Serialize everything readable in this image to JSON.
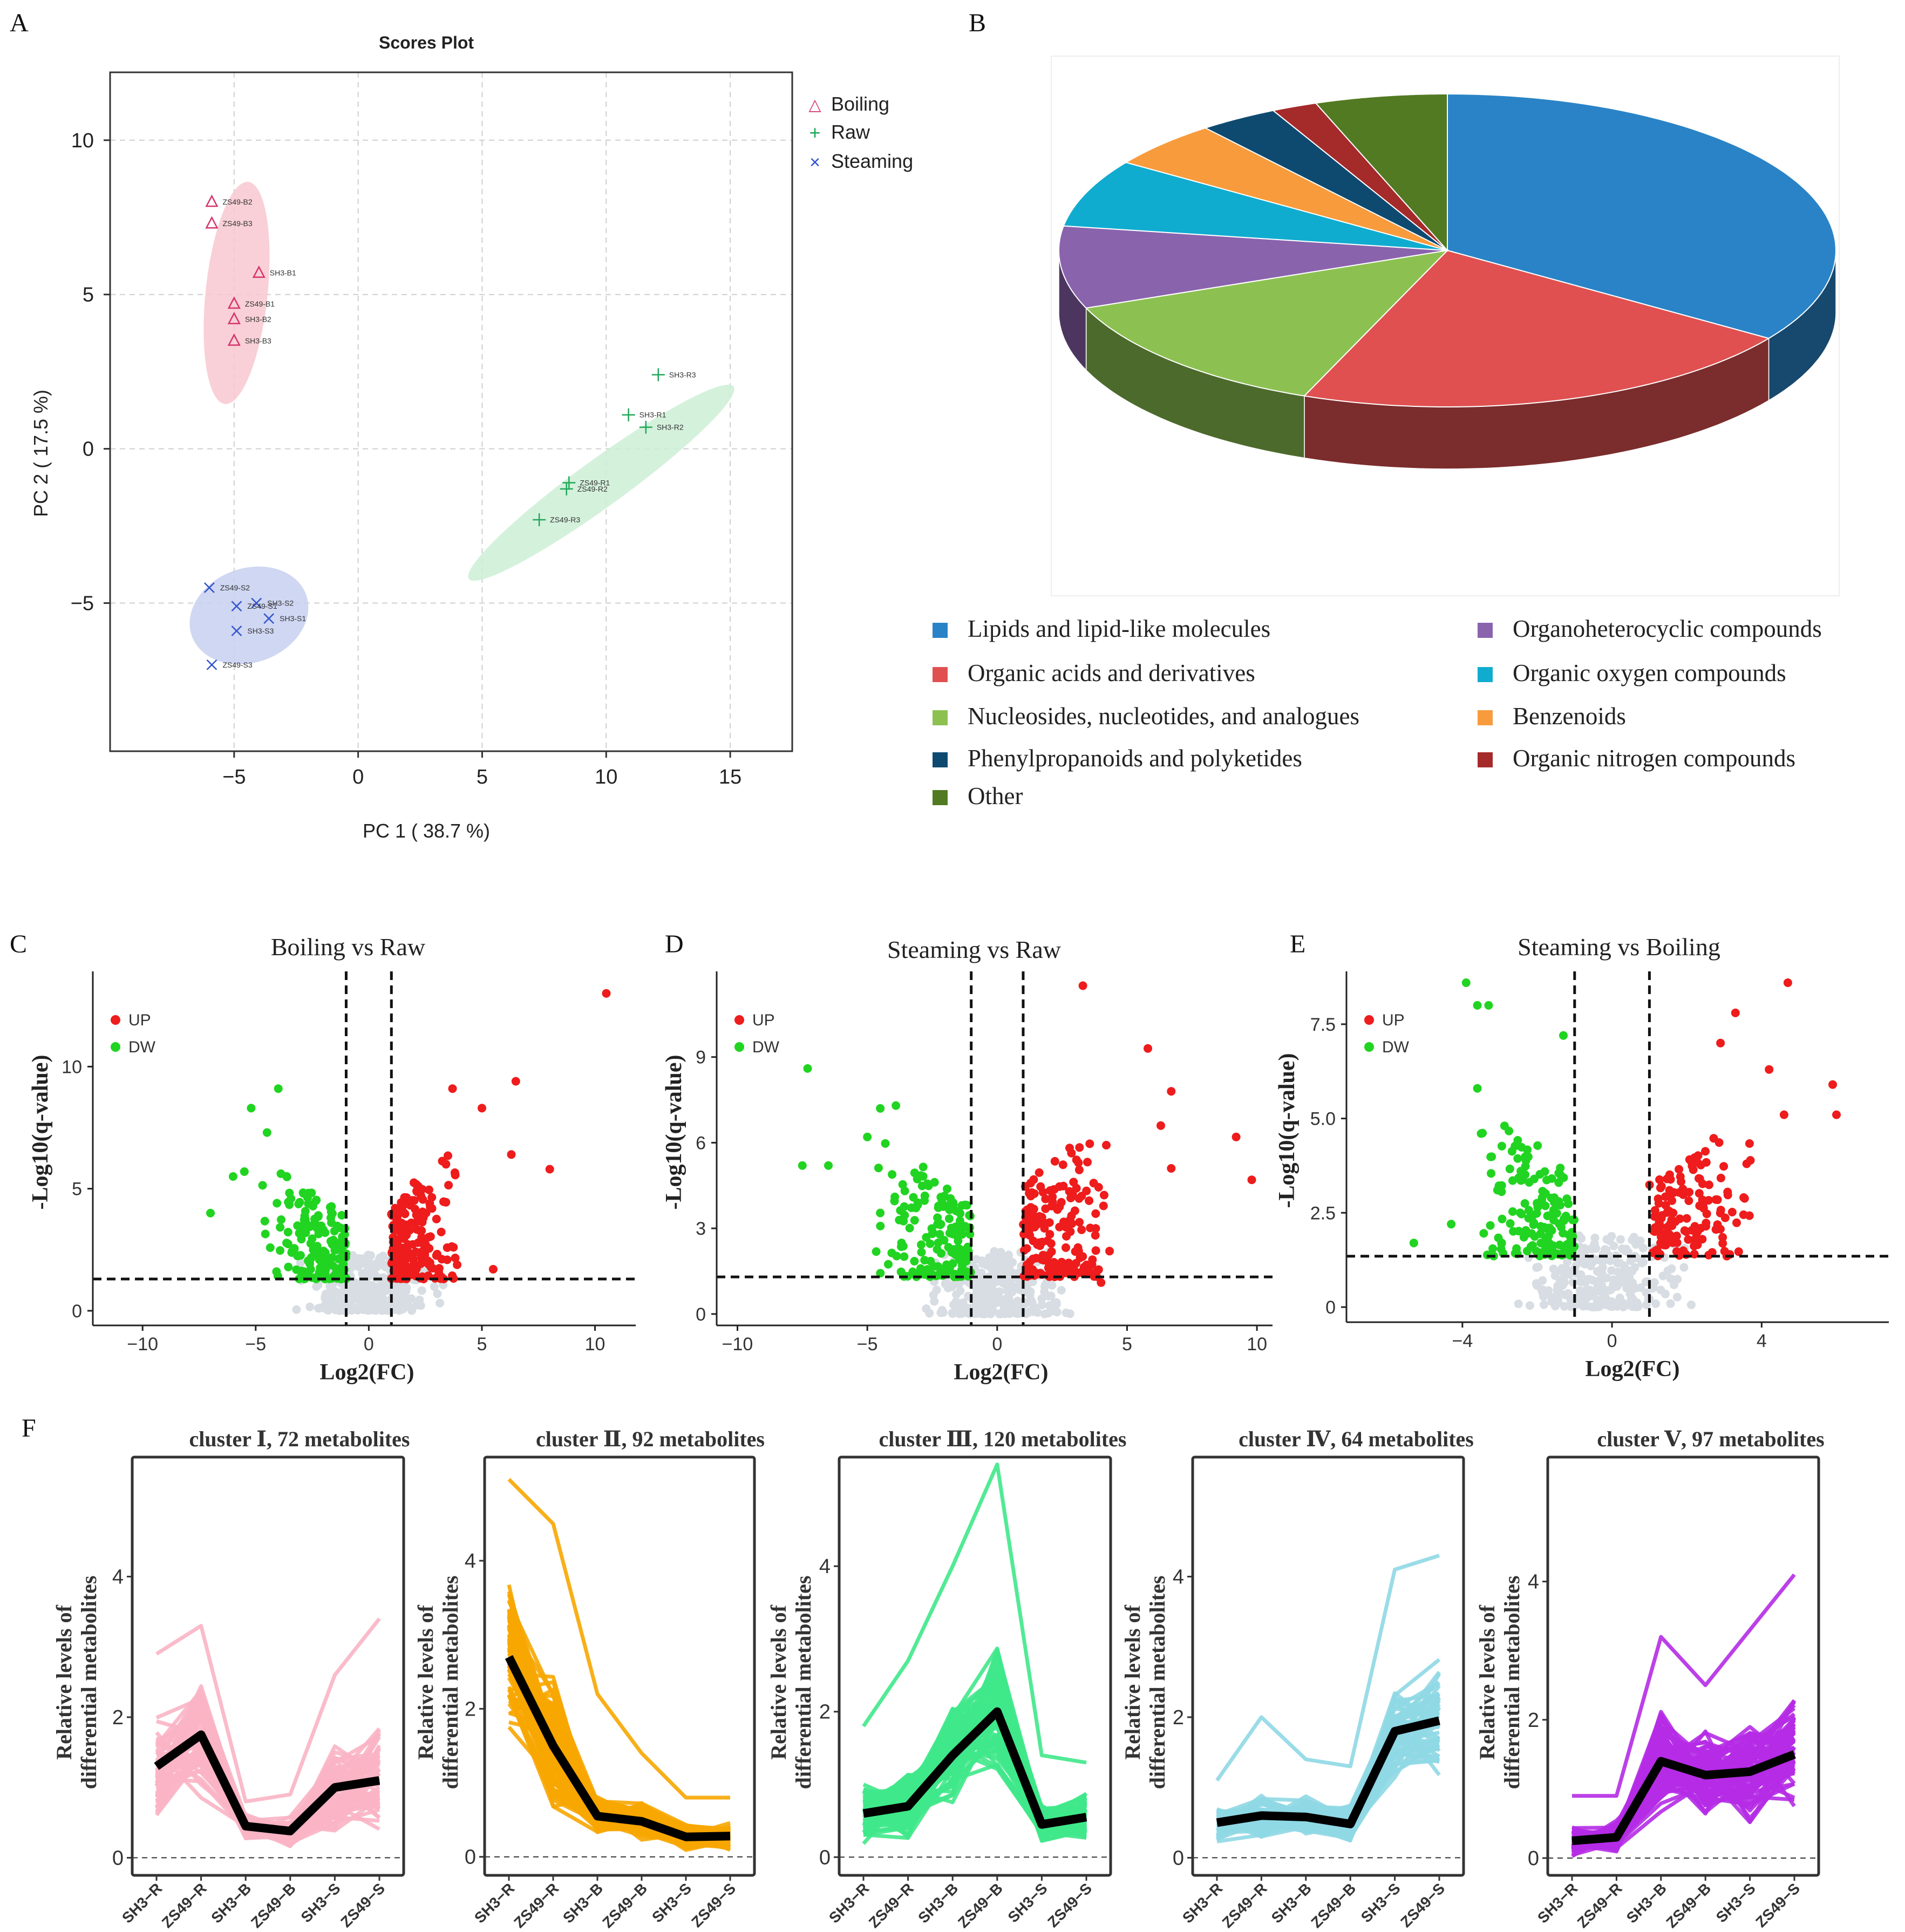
{
  "panel_labels": {
    "a": "A",
    "b": "B",
    "c": "C",
    "d": "D",
    "e": "E",
    "f": "F"
  },
  "chart_data": [
    {
      "id": "pca",
      "type": "scatter",
      "title": "Scores Plot",
      "xlabel": "PC 1 ( 38.7 %)",
      "ylabel": "PC 2 ( 17.5 %)",
      "xlim": [
        -10,
        17.5
      ],
      "ylim": [
        -9.8,
        12.2
      ],
      "xticks": [
        -5,
        0,
        5,
        10,
        15
      ],
      "yticks": [
        -5,
        0,
        5,
        10
      ],
      "xtick_labels": [
        "−5",
        "0",
        "5",
        "10",
        "15"
      ],
      "ytick_labels": [
        "−5",
        "0",
        "5",
        "10"
      ],
      "legend": [
        "Boiling",
        "Raw",
        "Steaming"
      ],
      "series": [
        {
          "name": "Boiling",
          "marker": "triangle",
          "color": "#d6336c",
          "fill": "#f8c8d0",
          "ellipse": {
            "cx": -4.9,
            "cy": 5.05,
            "rx": 4.5,
            "ry": 1.25,
            "angle": -84
          },
          "points": [
            {
              "label": "ZS49-B2",
              "x": -5.9,
              "y": 8.0
            },
            {
              "label": "ZS49-B3",
              "x": -5.9,
              "y": 7.3
            },
            {
              "label": "SH3-B1",
              "x": -4.0,
              "y": 5.7
            },
            {
              "label": "ZS49-B1",
              "x": -5.0,
              "y": 4.7
            },
            {
              "label": "SH3-B2",
              "x": -5.0,
              "y": 4.2
            },
            {
              "label": "SH3-B3",
              "x": -5.0,
              "y": 3.5
            }
          ]
        },
        {
          "name": "Raw",
          "marker": "plus",
          "color": "#20a85a",
          "fill": "#cdeed6",
          "ellipse": {
            "cx": 9.8,
            "cy": -1.1,
            "rx": 6.6,
            "ry": 0.95,
            "angle": -36
          },
          "points": [
            {
              "label": "SH3-R3",
              "x": 12.1,
              "y": 2.4
            },
            {
              "label": "SH3-R1",
              "x": 10.9,
              "y": 1.1
            },
            {
              "label": "SH3-R2",
              "x": 11.6,
              "y": 0.7
            },
            {
              "label": "ZS49-R1",
              "x": 8.5,
              "y": -1.1
            },
            {
              "label": "ZS49-R2",
              "x": 8.4,
              "y": -1.3
            },
            {
              "label": "ZS49-R3",
              "x": 7.3,
              "y": -2.3
            }
          ]
        },
        {
          "name": "Steaming",
          "marker": "x",
          "color": "#3355cc",
          "fill": "#c7d0f0",
          "ellipse": {
            "cx": -4.4,
            "cy": -5.4,
            "rx": 2.45,
            "ry": 1.9,
            "angle": -20
          },
          "points": [
            {
              "label": "ZS49-S2",
              "x": -6.0,
              "y": -4.5
            },
            {
              "label": "SH3-S2",
              "x": -4.1,
              "y": -5.0
            },
            {
              "label": "ZS49-S1",
              "x": -4.9,
              "y": -5.1
            },
            {
              "label": "SH3-S1",
              "x": -3.6,
              "y": -5.5
            },
            {
              "label": "SH3-S3",
              "x": -4.9,
              "y": -5.9
            },
            {
              "label": "ZS49-S3",
              "x": -5.9,
              "y": -7.0
            }
          ]
        }
      ]
    },
    {
      "id": "pie",
      "type": "pie",
      "legend_title": "",
      "slices": [
        {
          "label": "Lipids and lipid-like molecules",
          "value": 34.5,
          "color": "#2a83c6"
        },
        {
          "label": "Organic acids and derivatives",
          "value": 21.5,
          "color": "#e05050"
        },
        {
          "label": "Nucleosides, nucleotides, and analogues",
          "value": 13.0,
          "color": "#8cc152"
        },
        {
          "label": "Organoheterocyclic compounds",
          "value": 8.5,
          "color": "#8a63ad"
        },
        {
          "label": "Organic oxygen compounds",
          "value": 7.0,
          "color": "#10acd0"
        },
        {
          "label": "Benzenoids",
          "value": 4.8,
          "color": "#f79b3c"
        },
        {
          "label": "Phenylpropanoids and polyketides",
          "value": 3.3,
          "color": "#0e4a70"
        },
        {
          "label": "Organic nitrogen compounds",
          "value": 1.9,
          "color": "#a52a2a"
        },
        {
          "label": "Other",
          "value": 5.5,
          "color": "#527a22"
        }
      ]
    },
    {
      "id": "volcano-c",
      "type": "scatter",
      "title": "Boiling vs Raw",
      "xlabel": "Log2(FC)",
      "ylabel": "-Log10(q-value)",
      "xlim": [
        -12.2,
        11.8
      ],
      "ylim": [
        -0.6,
        13.9
      ],
      "xticks": [
        -10,
        -5,
        0,
        5,
        10
      ],
      "yticks": [
        0,
        5,
        10
      ],
      "xtick_labels": [
        "−10",
        "−5",
        "0",
        "5",
        "10"
      ],
      "ytick_labels": [
        "0",
        "5",
        "10"
      ],
      "thresholds": {
        "fc": [
          -1,
          1
        ],
        "q": 1.3
      },
      "legend": [
        "UP",
        "DW"
      ],
      "up_extra": [
        [
          10.5,
          13.0
        ],
        [
          6.5,
          9.4
        ],
        [
          8.0,
          5.8
        ],
        [
          6.3,
          6.4
        ],
        [
          5.0,
          8.3
        ],
        [
          3.7,
          9.1
        ],
        [
          5.5,
          1.7
        ]
      ],
      "dw_extra": [
        [
          -7.0,
          4.0
        ],
        [
          -5.2,
          8.3
        ],
        [
          -4.0,
          9.1
        ],
        [
          -4.5,
          7.3
        ],
        [
          -5.5,
          5.7
        ],
        [
          -6.0,
          5.5
        ]
      ],
      "seed": 11,
      "n_up": 190,
      "n_dw": 170,
      "n_ns": 300,
      "up_range": {
        "x": [
          1.0,
          4.5
        ],
        "ymax": 7.0
      },
      "dw_range": {
        "x": [
          -5.0,
          -1.0
        ],
        "ymax": 6.3
      },
      "ns_range": {
        "x": [
          -3.5,
          3.5
        ],
        "ymax": 2.3
      }
    },
    {
      "id": "volcano-d",
      "type": "scatter",
      "title": "Steaming vs Raw",
      "xlabel": "Log2(FC)",
      "ylabel": "-Log10(q-value)",
      "xlim": [
        -10.8,
        10.6
      ],
      "ylim": [
        -0.4,
        12.0
      ],
      "xticks": [
        -10,
        -5,
        0,
        5,
        10
      ],
      "yticks": [
        0,
        3,
        6,
        9
      ],
      "xtick_labels": [
        "−10",
        "−5",
        "0",
        "5",
        "10"
      ],
      "ytick_labels": [
        "0",
        "3",
        "6",
        "9"
      ],
      "thresholds": {
        "fc": [
          -1,
          1
        ],
        "q": 1.3
      },
      "legend": [
        "UP",
        "DW"
      ],
      "up_extra": [
        [
          3.3,
          11.5
        ],
        [
          5.8,
          9.3
        ],
        [
          9.2,
          6.2
        ],
        [
          9.8,
          4.7
        ],
        [
          6.7,
          7.8
        ],
        [
          6.3,
          6.6
        ],
        [
          4.0,
          1.1
        ],
        [
          6.7,
          5.1
        ]
      ],
      "dw_extra": [
        [
          -7.3,
          8.6
        ],
        [
          -7.5,
          5.2
        ],
        [
          -5.0,
          6.2
        ],
        [
          -3.9,
          7.3
        ],
        [
          -4.5,
          7.2
        ],
        [
          -6.5,
          5.2
        ]
      ],
      "seed": 23,
      "n_up": 175,
      "n_dw": 165,
      "n_ns": 300,
      "up_range": {
        "x": [
          1.0,
          5.0
        ],
        "ymax": 7.5
      },
      "dw_range": {
        "x": [
          -5.5,
          -1.0
        ],
        "ymax": 6.3
      },
      "ns_range": {
        "x": [
          -3.5,
          3.5
        ],
        "ymax": 2.2
      }
    },
    {
      "id": "volcano-e",
      "type": "scatter",
      "title": "Steaming vs Boiling",
      "xlabel": "Log2(FC)",
      "ylabel": "-Log10(q-value)",
      "xlim": [
        -7.1,
        7.4
      ],
      "ylim": [
        -0.4,
        8.9
      ],
      "xticks": [
        -4,
        0,
        4
      ],
      "yticks": [
        0,
        2.5,
        5.0,
        7.5
      ],
      "xtick_labels": [
        "−4",
        "0",
        "4"
      ],
      "ytick_labels": [
        "0",
        "2.5",
        "5.0",
        "7.5"
      ],
      "thresholds": {
        "fc": [
          -1,
          1
        ],
        "q": 1.35
      },
      "legend": [
        "UP",
        "DW"
      ],
      "up_extra": [
        [
          4.7,
          8.6
        ],
        [
          3.3,
          7.8
        ],
        [
          5.9,
          5.9
        ],
        [
          6.0,
          5.1
        ],
        [
          4.2,
          6.3
        ],
        [
          4.6,
          5.1
        ],
        [
          3.6,
          3.8
        ],
        [
          2.9,
          7.0
        ]
      ],
      "dw_extra": [
        [
          -3.9,
          8.6
        ],
        [
          -3.6,
          8.0
        ],
        [
          -3.3,
          8.0
        ],
        [
          -1.3,
          7.2
        ],
        [
          -3.6,
          5.8
        ],
        [
          -3.5,
          4.6
        ],
        [
          -5.3,
          1.7
        ],
        [
          -4.3,
          2.2
        ]
      ],
      "seed": 37,
      "n_up": 140,
      "n_dw": 150,
      "n_ns": 260,
      "up_range": {
        "x": [
          1.0,
          4.2
        ],
        "ymax": 5.2
      },
      "dw_range": {
        "x": [
          -3.8,
          -1.0
        ],
        "ymax": 5.6
      },
      "ns_range": {
        "x": [
          -3.0,
          2.5
        ],
        "ymax": 1.9
      }
    },
    {
      "id": "clusters",
      "type": "line",
      "categories": [
        "SH3−R",
        "ZS49−R",
        "SH3−B",
        "ZS49−B",
        "SH3−S",
        "ZS49−S"
      ],
      "ylabel_line1": "Relative levels of",
      "ylabel_line2": "differential metabolites",
      "yticks": [
        0,
        2,
        4
      ],
      "series": [
        {
          "title": "cluster Ⅰ, 72 metabolites",
          "color": "#f9b4c4",
          "ymax": 5.7,
          "mean": [
            1.3,
            1.75,
            0.45,
            0.38,
            1.0,
            1.1
          ],
          "spread": [
            0.8,
            0.9,
            0.2,
            0.25,
            0.7,
            0.8
          ],
          "peak": [
            2.9,
            3.3,
            0.8,
            0.9,
            2.6,
            3.4
          ],
          "n": 60
        },
        {
          "title": "cluster Ⅱ, 92 metabolites",
          "color": "#f7a600",
          "ymax": 5.4,
          "mean": [
            2.7,
            1.5,
            0.55,
            0.48,
            0.27,
            0.28
          ],
          "spread": [
            1.1,
            1.0,
            0.3,
            0.3,
            0.2,
            0.2
          ],
          "peak": [
            5.1,
            4.5,
            2.2,
            1.4,
            0.8,
            0.8
          ],
          "n": 70
        },
        {
          "title": "cluster Ⅲ, 120 metabolites",
          "color": "#3fe88a",
          "ymax": 5.5,
          "mean": [
            0.6,
            0.7,
            1.4,
            2.0,
            0.45,
            0.55
          ],
          "spread": [
            0.45,
            0.5,
            0.7,
            1.0,
            0.3,
            0.35
          ],
          "peak": [
            1.8,
            2.7,
            4.0,
            5.4,
            1.4,
            1.3
          ],
          "n": 80
        },
        {
          "title": "cluster Ⅳ, 64 metabolites",
          "color": "#8fd8e4",
          "ymax": 5.7,
          "mean": [
            0.5,
            0.6,
            0.58,
            0.48,
            1.8,
            1.95
          ],
          "spread": [
            0.3,
            0.35,
            0.3,
            0.3,
            0.8,
            0.9
          ],
          "peak": [
            1.1,
            2.0,
            1.4,
            1.3,
            4.1,
            4.3
          ],
          "n": 55
        },
        {
          "title": "cluster Ⅴ, 97 metabolites",
          "color": "#b52be6",
          "ymax": 5.8,
          "mean": [
            0.25,
            0.3,
            1.4,
            1.2,
            1.25,
            1.5
          ],
          "spread": [
            0.25,
            0.25,
            0.8,
            0.7,
            0.8,
            0.9
          ],
          "peak": [
            0.9,
            0.9,
            3.2,
            2.5,
            3.3,
            4.1
          ],
          "n": 70
        }
      ]
    }
  ]
}
